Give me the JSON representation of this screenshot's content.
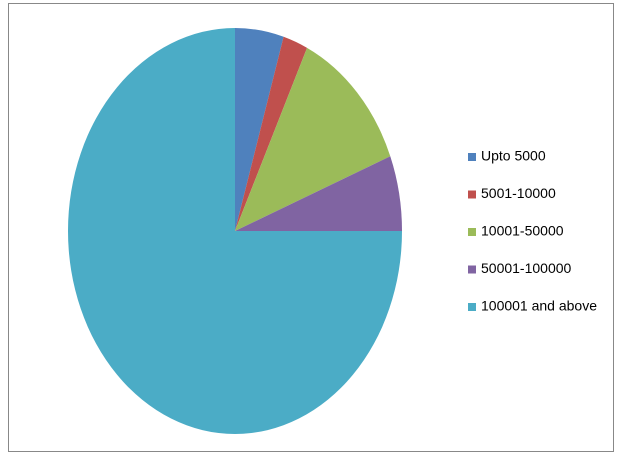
{
  "chart_data": {
    "type": "pie",
    "categories": [
      "Upto 5000",
      "5001-10000",
      "10001-50000",
      "50001-100000",
      "100001 and above"
    ],
    "values": [
      4.7,
      2.4,
      11.9,
      6,
      75
    ],
    "colors": [
      "#4f81bd",
      "#c0504d",
      "#9bbb59",
      "#8064a2",
      "#4bacc6"
    ],
    "legend": "right"
  }
}
